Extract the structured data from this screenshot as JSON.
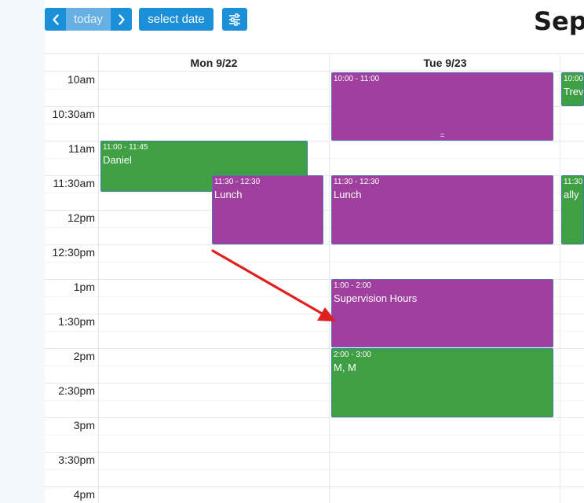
{
  "toolbar": {
    "today_label": "today",
    "select_date_label": "select date"
  },
  "header": {
    "title": "Sep"
  },
  "columns": [
    {
      "label": "Mon 9/22"
    },
    {
      "label": "Tue 9/23"
    }
  ],
  "time_labels": [
    "10am",
    "10:30am",
    "11am",
    "11:30am",
    "12pm",
    "12:30pm",
    "1pm",
    "1:30pm",
    "2pm",
    "2:30pm",
    "3pm",
    "3:30pm",
    "4pm"
  ],
  "events": [
    {
      "time": "11:00 - 11:45",
      "title": "Daniel",
      "color": "#3fa043"
    },
    {
      "time": "11:30 - 12:30",
      "title": "Lunch",
      "color": "#a0409e"
    },
    {
      "time": "10:00 - 11:00",
      "title": "",
      "color": "#a0409e"
    },
    {
      "time": "11:30 - 12:30",
      "title": "Lunch",
      "color": "#a0409e"
    },
    {
      "time": "1:00 - 2:00",
      "title": "Supervision Hours",
      "color": "#a0409e"
    },
    {
      "time": "2:00 - 3:00",
      "title": "M, M",
      "color": "#3fa043"
    },
    {
      "time": "10:00",
      "title": "Trev",
      "color": "#3fa043"
    },
    {
      "time": "11:30 -",
      "title": "ally",
      "color": "#3fa043"
    }
  ],
  "resize_handle": "=",
  "colors": {
    "accent": "#1b8fd8",
    "event_purple": "#a0409e",
    "event_green": "#3fa043",
    "arrow": "#e02020"
  }
}
